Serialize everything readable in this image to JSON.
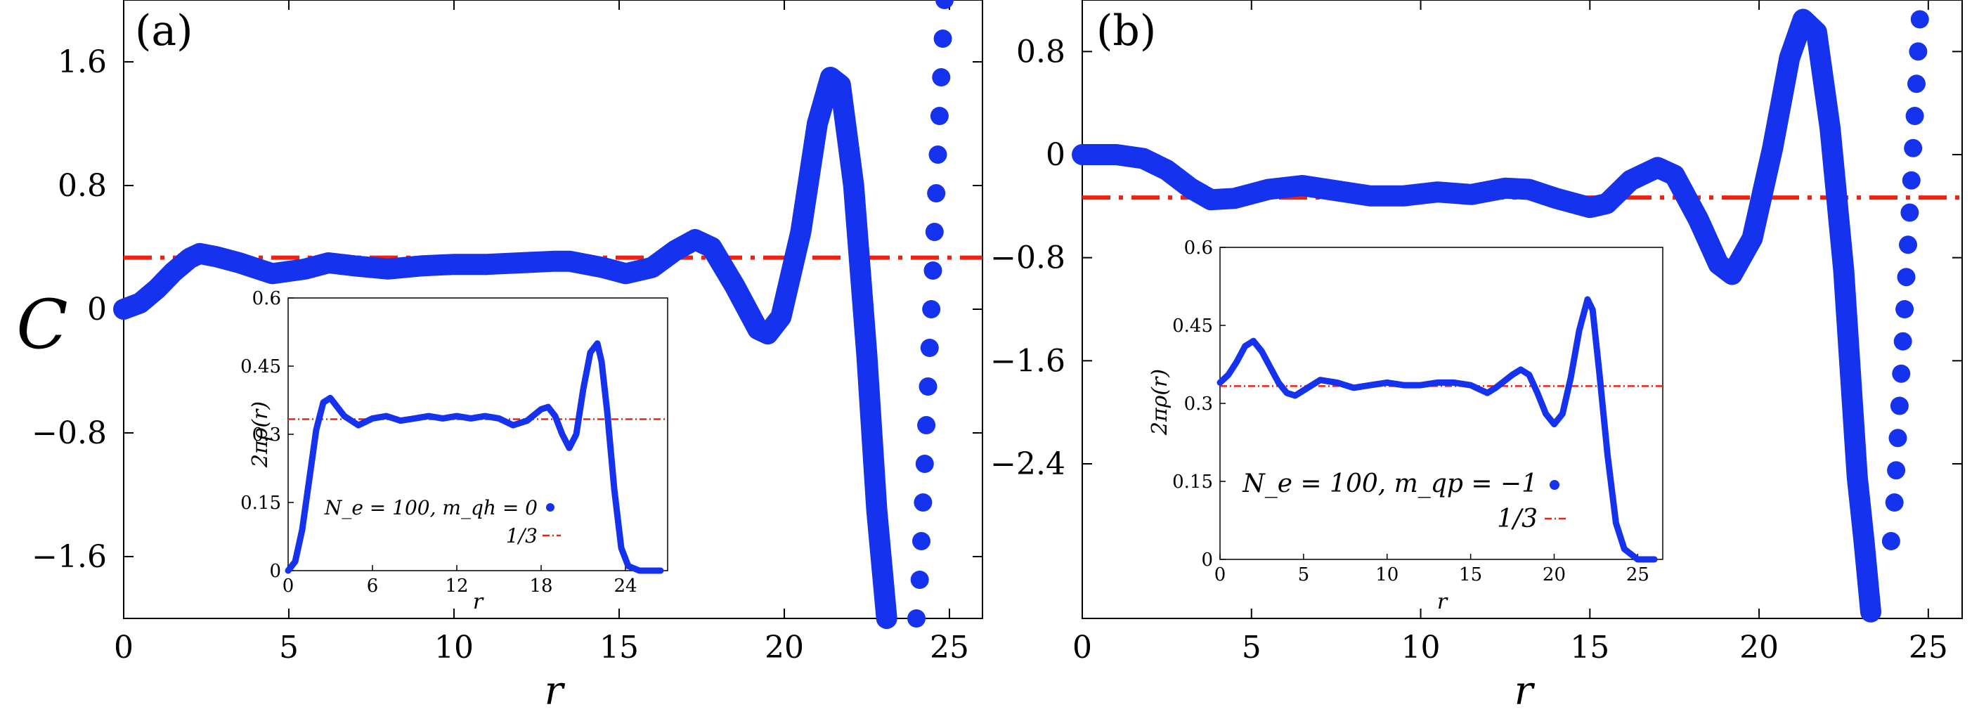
{
  "chart_data": [
    {
      "panel": "(a)",
      "type": "scatter",
      "xlabel": "r",
      "ylabel": "C",
      "xlim": [
        0,
        26
      ],
      "ylim": [
        -2.0,
        2.0
      ],
      "xticks": [
        0,
        5,
        10,
        15,
        20,
        25
      ],
      "yticks": [
        -1.6,
        -0.8,
        0,
        0.8,
        1.6
      ],
      "ytick_labels": [
        "−1.6",
        "−0.8",
        "0",
        "0.8",
        "1.6"
      ],
      "series_color": "#1533ee",
      "reference_line": {
        "value": 0.3333,
        "color": "#ee2211",
        "style": "dash-dot"
      },
      "curve_points": [
        [
          0,
          0
        ],
        [
          0.5,
          0.04
        ],
        [
          1,
          0.13
        ],
        [
          1.5,
          0.24
        ],
        [
          2,
          0.33
        ],
        [
          2.3,
          0.36
        ],
        [
          2.8,
          0.34
        ],
        [
          3.5,
          0.3
        ],
        [
          4.5,
          0.23
        ],
        [
          5.5,
          0.26
        ],
        [
          6.2,
          0.3
        ],
        [
          7,
          0.28
        ],
        [
          8,
          0.26
        ],
        [
          9,
          0.28
        ],
        [
          10,
          0.29
        ],
        [
          11,
          0.29
        ],
        [
          12,
          0.3
        ],
        [
          13,
          0.31
        ],
        [
          13.5,
          0.31
        ],
        [
          14.5,
          0.27
        ],
        [
          15.2,
          0.23
        ],
        [
          16,
          0.27
        ],
        [
          16.7,
          0.38
        ],
        [
          17.3,
          0.45
        ],
        [
          17.8,
          0.4
        ],
        [
          18.5,
          0.15
        ],
        [
          19.2,
          -0.13
        ],
        [
          19.5,
          -0.16
        ],
        [
          19.9,
          -0.05
        ],
        [
          20.5,
          0.5
        ],
        [
          21,
          1.2
        ],
        [
          21.4,
          1.5
        ],
        [
          21.7,
          1.45
        ],
        [
          22.1,
          0.8
        ],
        [
          22.5,
          -0.3
        ],
        [
          22.8,
          -1.3
        ],
        [
          23.1,
          -2.0
        ]
      ],
      "scatter_points": [
        [
          24.0,
          -2.0
        ],
        [
          24.1,
          -1.75
        ],
        [
          24.15,
          -1.5
        ],
        [
          24.2,
          -1.25
        ],
        [
          24.25,
          -1.0
        ],
        [
          24.3,
          -0.75
        ],
        [
          24.35,
          -0.5
        ],
        [
          24.4,
          -0.25
        ],
        [
          24.45,
          0
        ],
        [
          24.5,
          0.25
        ],
        [
          24.55,
          0.5
        ],
        [
          24.6,
          0.75
        ],
        [
          24.65,
          1.0
        ],
        [
          24.7,
          1.25
        ],
        [
          24.75,
          1.5
        ],
        [
          24.8,
          1.75
        ],
        [
          24.85,
          2.0
        ]
      ],
      "inset": {
        "type": "line",
        "xlabel": "r",
        "ylabel": "2πρ(r)",
        "xlim": [
          0,
          27
        ],
        "ylim": [
          0,
          0.6
        ],
        "xticks": [
          0,
          6,
          12,
          18,
          24
        ],
        "yticks": [
          0,
          0.15,
          0.3,
          0.45,
          0.6
        ],
        "reference_value": 0.3333,
        "legend": {
          "series_label": "N_e = 100, m_qh = 0",
          "ref_label": "1/3"
        },
        "points": [
          [
            0,
            0
          ],
          [
            0.5,
            0.02
          ],
          [
            1,
            0.09
          ],
          [
            1.5,
            0.2
          ],
          [
            2,
            0.31
          ],
          [
            2.5,
            0.37
          ],
          [
            3,
            0.38
          ],
          [
            3.5,
            0.36
          ],
          [
            4,
            0.34
          ],
          [
            5,
            0.32
          ],
          [
            6,
            0.335
          ],
          [
            7,
            0.34
          ],
          [
            8,
            0.33
          ],
          [
            9,
            0.335
          ],
          [
            10,
            0.34
          ],
          [
            11,
            0.335
          ],
          [
            12,
            0.34
          ],
          [
            13,
            0.335
          ],
          [
            14,
            0.34
          ],
          [
            15,
            0.335
          ],
          [
            16,
            0.32
          ],
          [
            17,
            0.33
          ],
          [
            18,
            0.355
          ],
          [
            18.5,
            0.36
          ],
          [
            19,
            0.34
          ],
          [
            19.5,
            0.3
          ],
          [
            20,
            0.27
          ],
          [
            20.5,
            0.3
          ],
          [
            21,
            0.4
          ],
          [
            21.5,
            0.48
          ],
          [
            22,
            0.5
          ],
          [
            22.3,
            0.46
          ],
          [
            22.7,
            0.35
          ],
          [
            23.2,
            0.18
          ],
          [
            23.7,
            0.05
          ],
          [
            24.2,
            0.01
          ],
          [
            25,
            0
          ],
          [
            26.5,
            0
          ]
        ]
      }
    },
    {
      "panel": "(b)",
      "type": "scatter",
      "xlabel": "r",
      "ylabel": "",
      "xlim": [
        0,
        26
      ],
      "ylim": [
        -3.6,
        1.2
      ],
      "xticks": [
        0,
        5,
        10,
        15,
        20,
        25
      ],
      "yticks": [
        -2.4,
        -1.6,
        -0.8,
        0,
        0.8
      ],
      "ytick_labels": [
        "−2.4",
        "−1.6",
        "−0.8",
        "0",
        "0.8"
      ],
      "series_color": "#1533ee",
      "reference_line": {
        "value": -0.3333,
        "color": "#ee2211",
        "style": "dash-dot"
      },
      "curve_points": [
        [
          0,
          0
        ],
        [
          1,
          0
        ],
        [
          1.8,
          -0.03
        ],
        [
          2.5,
          -0.12
        ],
        [
          3.2,
          -0.26
        ],
        [
          3.8,
          -0.35
        ],
        [
          4.5,
          -0.34
        ],
        [
          5.5,
          -0.27
        ],
        [
          6.5,
          -0.24
        ],
        [
          7.5,
          -0.28
        ],
        [
          8.5,
          -0.32
        ],
        [
          9.5,
          -0.32
        ],
        [
          10.5,
          -0.29
        ],
        [
          11.5,
          -0.31
        ],
        [
          12.5,
          -0.26
        ],
        [
          13.2,
          -0.27
        ],
        [
          14,
          -0.34
        ],
        [
          15,
          -0.41
        ],
        [
          15.5,
          -0.38
        ],
        [
          16.2,
          -0.2
        ],
        [
          17,
          -0.1
        ],
        [
          17.5,
          -0.16
        ],
        [
          18.2,
          -0.5
        ],
        [
          18.8,
          -0.85
        ],
        [
          19.2,
          -0.93
        ],
        [
          19.8,
          -0.65
        ],
        [
          20.4,
          0.05
        ],
        [
          20.9,
          0.75
        ],
        [
          21.3,
          1.05
        ],
        [
          21.7,
          0.95
        ],
        [
          22.1,
          0.2
        ],
        [
          22.5,
          -0.9
        ],
        [
          22.9,
          -2.5
        ],
        [
          23.1,
          -3.0
        ],
        [
          23.3,
          -3.55
        ]
      ],
      "scatter_points": [
        [
          23.9,
          -3.0
        ],
        [
          24.0,
          -2.7
        ],
        [
          24.05,
          -2.45
        ],
        [
          24.1,
          -2.2
        ],
        [
          24.15,
          -1.95
        ],
        [
          24.2,
          -1.7
        ],
        [
          24.25,
          -1.45
        ],
        [
          24.3,
          -1.2
        ],
        [
          24.35,
          -0.95
        ],
        [
          24.4,
          -0.7
        ],
        [
          24.45,
          -0.45
        ],
        [
          24.5,
          -0.2
        ],
        [
          24.55,
          0.05
        ],
        [
          24.6,
          0.3
        ],
        [
          24.65,
          0.55
        ],
        [
          24.7,
          0.8
        ],
        [
          24.75,
          1.05
        ]
      ],
      "inset": {
        "type": "line",
        "xlabel": "r",
        "ylabel": "2πρ(r)",
        "xlim": [
          0,
          26.5
        ],
        "ylim": [
          0,
          0.6
        ],
        "xticks": [
          0,
          5,
          10,
          15,
          20,
          25
        ],
        "yticks": [
          0,
          0.15,
          0.3,
          0.45,
          0.6
        ],
        "reference_value": 0.3333,
        "legend": {
          "series_label": "N_e = 100, m_qp = −1",
          "ref_label": "1/3"
        },
        "points": [
          [
            0,
            0.34
          ],
          [
            0.5,
            0.355
          ],
          [
            1,
            0.38
          ],
          [
            1.5,
            0.41
          ],
          [
            2,
            0.42
          ],
          [
            2.5,
            0.4
          ],
          [
            3,
            0.37
          ],
          [
            3.5,
            0.34
          ],
          [
            4,
            0.32
          ],
          [
            4.5,
            0.315
          ],
          [
            5,
            0.325
          ],
          [
            6,
            0.345
          ],
          [
            7,
            0.34
          ],
          [
            8,
            0.33
          ],
          [
            9,
            0.335
          ],
          [
            10,
            0.34
          ],
          [
            11,
            0.335
          ],
          [
            12,
            0.335
          ],
          [
            13,
            0.34
          ],
          [
            14,
            0.34
          ],
          [
            15,
            0.335
          ],
          [
            16,
            0.32
          ],
          [
            16.5,
            0.33
          ],
          [
            17.5,
            0.355
          ],
          [
            18,
            0.365
          ],
          [
            18.5,
            0.355
          ],
          [
            19,
            0.32
          ],
          [
            19.5,
            0.28
          ],
          [
            20,
            0.26
          ],
          [
            20.5,
            0.28
          ],
          [
            21,
            0.35
          ],
          [
            21.5,
            0.44
          ],
          [
            22,
            0.5
          ],
          [
            22.3,
            0.48
          ],
          [
            22.7,
            0.36
          ],
          [
            23.2,
            0.2
          ],
          [
            23.7,
            0.07
          ],
          [
            24.2,
            0.02
          ],
          [
            25,
            0
          ],
          [
            26,
            0
          ]
        ]
      }
    }
  ]
}
